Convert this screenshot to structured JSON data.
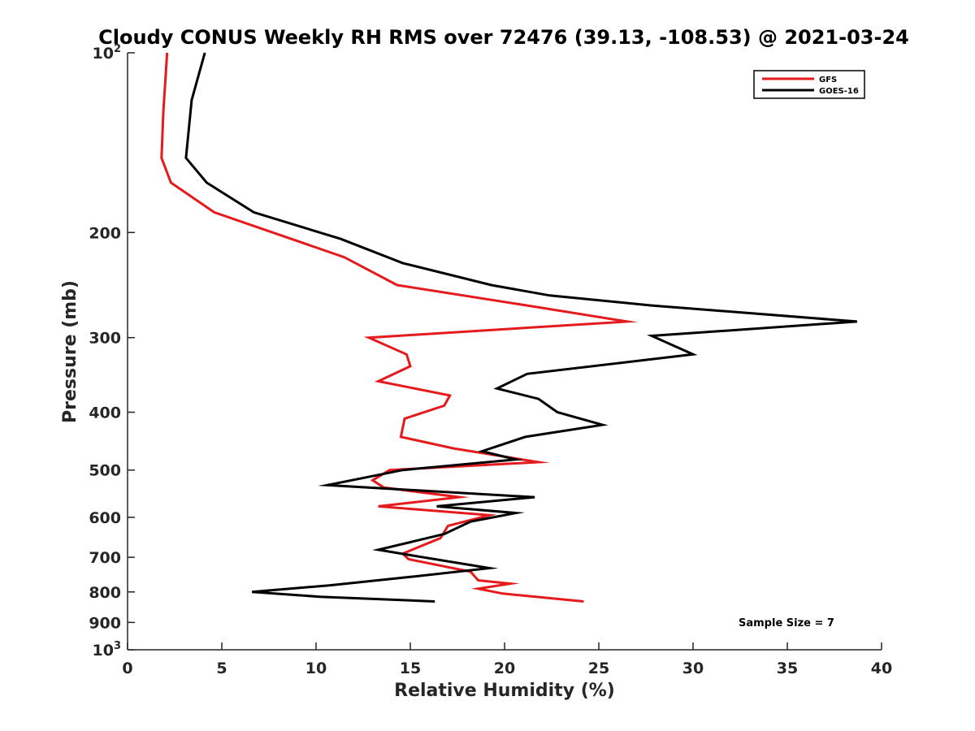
{
  "chart_data": {
    "type": "line",
    "title": "Cloudy CONUS Weekly RH RMS over 72476 (39.13, -108.53) @ 2021-03-24",
    "xlabel": "Relative Humidity (%)",
    "ylabel": "Pressure (mb)",
    "xlim": [
      0,
      40
    ],
    "ylim": [
      100,
      1000
    ],
    "y_scale": "log",
    "y_reversed": true,
    "x_ticks": [
      "0",
      "5",
      "10",
      "15",
      "20",
      "25",
      "30",
      "35",
      "40"
    ],
    "y_ticks": [
      {
        "value": 100,
        "label": "10",
        "sup": "2"
      },
      {
        "value": 200,
        "label": "200",
        "sup": ""
      },
      {
        "value": 300,
        "label": "300",
        "sup": ""
      },
      {
        "value": 400,
        "label": "400",
        "sup": ""
      },
      {
        "value": 500,
        "label": "500",
        "sup": ""
      },
      {
        "value": 600,
        "label": "600",
        "sup": ""
      },
      {
        "value": 700,
        "label": "700",
        "sup": ""
      },
      {
        "value": 800,
        "label": "800",
        "sup": ""
      },
      {
        "value": 900,
        "label": "900",
        "sup": ""
      },
      {
        "value": 1000,
        "label": "10",
        "sup": "3"
      }
    ],
    "legend_position": "top-right",
    "grid": false,
    "annotation": "Sample Size = 7",
    "series": [
      {
        "name": "GFS",
        "color": "#e41a1c",
        "points": [
          [
            2.1,
            100
          ],
          [
            1.9,
            125
          ],
          [
            1.8,
            150
          ],
          [
            2.3,
            165
          ],
          [
            4.6,
            185
          ],
          [
            11.5,
            220
          ],
          [
            14.3,
            245
          ],
          [
            21.2,
            265
          ],
          [
            26.5,
            282
          ],
          [
            12.8,
            300
          ],
          [
            14.8,
            320
          ],
          [
            15.0,
            335
          ],
          [
            13.3,
            355
          ],
          [
            17.1,
            375
          ],
          [
            16.8,
            390
          ],
          [
            14.7,
            410
          ],
          [
            14.5,
            440
          ],
          [
            17.3,
            460
          ],
          [
            21.8,
            485
          ],
          [
            13.9,
            500
          ],
          [
            13.0,
            520
          ],
          [
            13.6,
            535
          ],
          [
            17.6,
            555
          ],
          [
            13.3,
            575
          ],
          [
            19.2,
            595
          ],
          [
            17.0,
            620
          ],
          [
            16.6,
            650
          ],
          [
            14.6,
            690
          ],
          [
            14.9,
            705
          ],
          [
            18.2,
            740
          ],
          [
            18.6,
            765
          ],
          [
            20.3,
            775
          ],
          [
            18.6,
            790
          ],
          [
            19.9,
            805
          ],
          [
            24.2,
            830
          ]
        ]
      },
      {
        "name": "GOES-16",
        "color": "#000000",
        "points": [
          [
            4.1,
            100
          ],
          [
            3.4,
            120
          ],
          [
            3.1,
            150
          ],
          [
            4.2,
            165
          ],
          [
            6.7,
            185
          ],
          [
            11.3,
            205
          ],
          [
            14.6,
            225
          ],
          [
            19.3,
            245
          ],
          [
            22.4,
            255
          ],
          [
            27.8,
            265
          ],
          [
            38.7,
            282
          ],
          [
            27.8,
            298
          ],
          [
            30.0,
            320
          ],
          [
            21.2,
            345
          ],
          [
            19.6,
            365
          ],
          [
            21.8,
            380
          ],
          [
            22.8,
            400
          ],
          [
            25.2,
            420
          ],
          [
            21.1,
            440
          ],
          [
            18.8,
            465
          ],
          [
            20.6,
            480
          ],
          [
            14.6,
            500
          ],
          [
            10.6,
            530
          ],
          [
            21.6,
            555
          ],
          [
            16.4,
            575
          ],
          [
            20.6,
            590
          ],
          [
            18.2,
            610
          ],
          [
            16.8,
            640
          ],
          [
            13.3,
            680
          ],
          [
            15.1,
            695
          ],
          [
            19.2,
            730
          ],
          [
            15.0,
            755
          ],
          [
            10.7,
            780
          ],
          [
            6.6,
            800
          ],
          [
            10.2,
            815
          ],
          [
            16.3,
            830
          ]
        ]
      }
    ]
  }
}
